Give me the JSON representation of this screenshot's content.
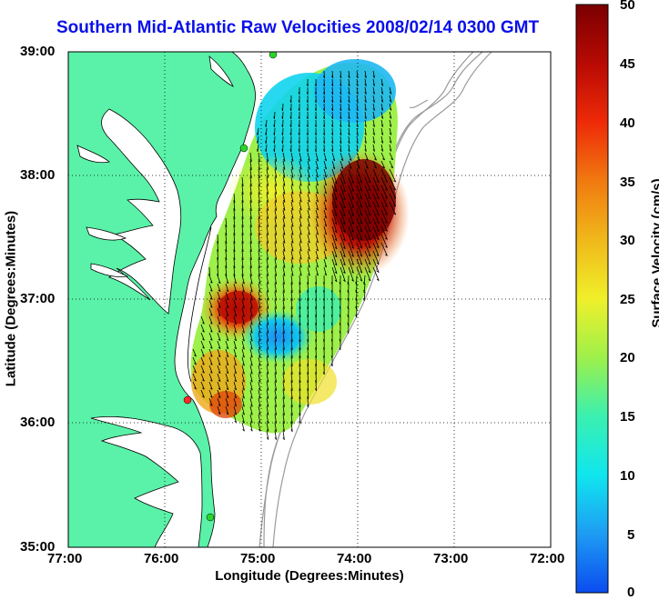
{
  "title": "Southern Mid-Atlantic Raw Velocities 2008/02/14 0300 GMT",
  "x_axis": {
    "label": "Longitude (Degrees:Minutes)",
    "ticks": [
      "77:00",
      "76:00",
      "75:00",
      "74:00",
      "73:00",
      "72:00"
    ]
  },
  "y_axis": {
    "label": "Latitude (Degrees:Minutes)",
    "ticks": [
      "39:00",
      "38:00",
      "37:00",
      "36:00",
      "35:00"
    ]
  },
  "colorbar": {
    "label": "Surface Velocity (cm/s)",
    "ticks": [
      "50",
      "45",
      "40",
      "35",
      "30",
      "25",
      "20",
      "15",
      "10",
      "5",
      "0"
    ],
    "min": 0,
    "max": 50,
    "colors": [
      "#0b4cf0",
      "#1e9cf3",
      "#10e6ee",
      "#3af0b0",
      "#9ef04a",
      "#f0f02a",
      "#f0b81a",
      "#f07a10",
      "#ee2a08",
      "#b80a04",
      "#7a0000"
    ]
  },
  "map_colors": {
    "land": "#5af2a8",
    "water": "#ffffff",
    "bathymetry": "#9a9a9a",
    "station": "#29d62a",
    "station_alt": "#ff2a2a"
  },
  "chart_data": {
    "type": "map",
    "xlim": [
      "77:00",
      "72:00"
    ],
    "ylim": [
      "35:00",
      "39:00"
    ],
    "grid": true,
    "grid_style": "dotted",
    "field": "surface current velocity vectors colored by speed",
    "velocity_range_cm_s": [
      0,
      50
    ],
    "regions": [
      {
        "description": "high speed core",
        "approx_lon": "74:00",
        "approx_lat": "37:45",
        "speed_cm_s": 45
      },
      {
        "description": "secondary high",
        "approx_lon": "75:15",
        "approx_lat": "36:55",
        "speed_cm_s": 38
      },
      {
        "description": "low speed patch",
        "approx_lon": "74:55",
        "approx_lat": "36:40",
        "speed_cm_s": 8
      },
      {
        "description": "low speed north",
        "approx_lon": "74:15",
        "approx_lat": "38:20",
        "speed_cm_s": 10
      }
    ]
  }
}
